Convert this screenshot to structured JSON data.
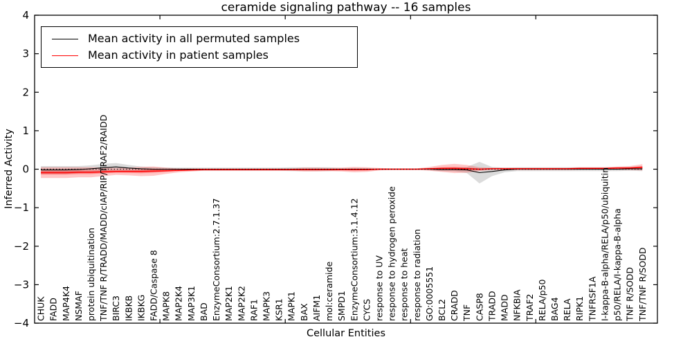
{
  "chart_data": {
    "type": "line",
    "title": "ceramide signaling pathway -- 16 samples",
    "xlabel": "Cellular Entities",
    "ylabel": "Inferred Activity",
    "ylim": [
      -4,
      4
    ],
    "xlim": [
      0,
      49.7
    ],
    "grid": false,
    "legend_position": "upper left",
    "baseline": 0,
    "baseline_style": "dotted",
    "ytick_values": [
      4,
      3,
      2,
      1,
      0,
      -1,
      -2,
      -3,
      -4
    ],
    "ytick_labels": [
      "4",
      "3",
      "2",
      "1",
      "0",
      "−1",
      "−2",
      "−3",
      "−4"
    ],
    "x_major_ticks": [
      10,
      20,
      30,
      40
    ],
    "categories": [
      "CHUK",
      "FADD",
      "MAP4K4",
      "NSMAF",
      "protein ubiquitination",
      "TNF/TNF R/TRADD/MADD/cIAP/RIP/TRAF2/RAIDD",
      "BIRC3",
      "IKBKB",
      "IKBKG",
      "FADD/Caspase 8",
      "MAPK8",
      "MAP2K4",
      "MAP3K1",
      "BAD",
      "EnzymeConsortium:2.7.1.37",
      "MAP2K1",
      "MAP2K2",
      "RAF1",
      "MAPK3",
      "KSR1",
      "MAPK1",
      "BAX",
      "AIFM1",
      "mol:ceramide",
      "SMPD1",
      "EnzymeConsortium:3.1.4.12",
      "CYCS",
      "response to UV",
      "response to hydrogen peroxide",
      "response to heat",
      "response to radiation",
      "GO:0005551",
      "BCL2",
      "CRADD",
      "TNF",
      "CASP8",
      "TRADD",
      "MADD",
      "NFKBIA",
      "TRAF2",
      "RELA/p50",
      "BAG4",
      "RELA",
      "RIPK1",
      "TNFRSF1A",
      "I-kappa-B-alpha/RELA/p50/ubiquitin",
      "p50/RELA/I-kappa-B-alpha",
      "TNF R/SODD",
      "TNF/TNF R/SODD"
    ],
    "series": [
      {
        "name": "Mean activity in all permuted samples",
        "color": "#000000",
        "band_color": "rgba(0,0,0,0.14)",
        "values": [
          -0.02,
          -0.02,
          -0.02,
          -0.01,
          0.01,
          0.04,
          0.06,
          0.03,
          0.01,
          0.0,
          0.0,
          0.0,
          0.0,
          0.0,
          0.0,
          0.0,
          0.0,
          0.0,
          0.0,
          0.0,
          0.0,
          0.0,
          0.0,
          0.0,
          0.0,
          0.0,
          0.0,
          0.0,
          0.0,
          0.0,
          0.0,
          0.0,
          -0.01,
          -0.01,
          -0.02,
          -0.09,
          -0.06,
          -0.02,
          0.0,
          0.0,
          0.0,
          0.0,
          0.0,
          0.0,
          0.0,
          0.0,
          0.0,
          0.01,
          0.01
        ],
        "std": [
          0.1,
          0.1,
          0.1,
          0.09,
          0.09,
          0.1,
          0.1,
          0.08,
          0.06,
          0.05,
          0.04,
          0.04,
          0.04,
          0.04,
          0.04,
          0.04,
          0.04,
          0.04,
          0.04,
          0.04,
          0.05,
          0.05,
          0.05,
          0.05,
          0.03,
          0.03,
          0.03,
          0.02,
          0.02,
          0.02,
          0.02,
          0.03,
          0.04,
          0.05,
          0.08,
          0.28,
          0.12,
          0.06,
          0.05,
          0.05,
          0.05,
          0.05,
          0.05,
          0.05,
          0.05,
          0.05,
          0.05,
          0.05,
          0.06
        ]
      },
      {
        "name": "Mean activity in patient samples",
        "color": "#ff0000",
        "band_color": "rgba(255,0,0,0.22)",
        "values": [
          -0.09,
          -0.09,
          -0.09,
          -0.08,
          -0.08,
          -0.07,
          -0.06,
          -0.06,
          -0.06,
          -0.05,
          -0.04,
          -0.03,
          -0.02,
          -0.01,
          -0.01,
          -0.01,
          -0.01,
          -0.01,
          -0.01,
          -0.01,
          -0.01,
          -0.01,
          -0.01,
          -0.01,
          -0.01,
          -0.01,
          -0.01,
          0.0,
          0.0,
          0.0,
          0.0,
          0.01,
          0.02,
          0.02,
          0.01,
          0.0,
          0.01,
          0.01,
          0.01,
          0.01,
          0.01,
          0.01,
          0.01,
          0.02,
          0.02,
          0.02,
          0.03,
          0.03,
          0.05
        ],
        "std": [
          0.14,
          0.14,
          0.14,
          0.13,
          0.13,
          0.11,
          0.09,
          0.1,
          0.12,
          0.12,
          0.08,
          0.05,
          0.04,
          0.03,
          0.03,
          0.03,
          0.03,
          0.03,
          0.03,
          0.03,
          0.03,
          0.05,
          0.05,
          0.04,
          0.05,
          0.07,
          0.06,
          0.03,
          0.02,
          0.02,
          0.02,
          0.05,
          0.09,
          0.12,
          0.1,
          0.05,
          0.03,
          0.03,
          0.03,
          0.03,
          0.03,
          0.03,
          0.03,
          0.03,
          0.03,
          0.03,
          0.04,
          0.05,
          0.08
        ]
      }
    ]
  }
}
